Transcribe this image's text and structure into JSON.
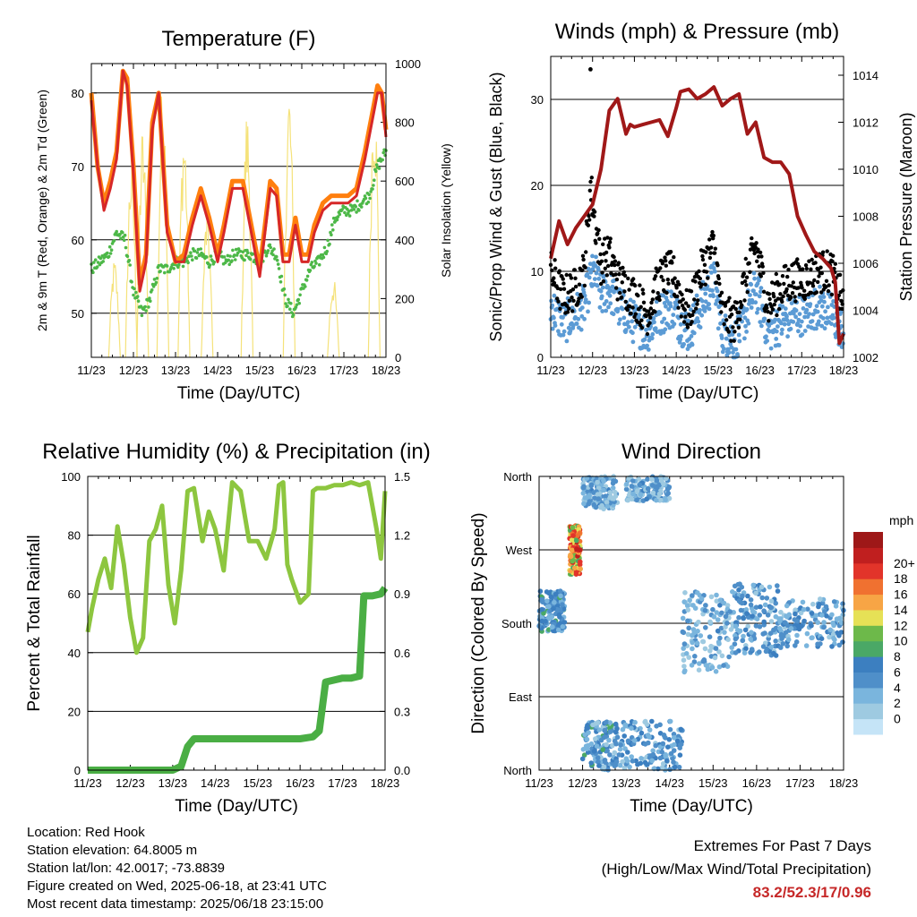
{
  "info": {
    "location": "Location: Red Hook",
    "elevation": "Station elevation: 64.8005 m",
    "latlon": "Station lat/lon: 42.0017; -73.8839",
    "created": "Figure created on Wed, 2025-06-18, at 23:41 UTC",
    "latest": "Most recent data timestamp: 2025/06/18 23:15:00"
  },
  "extremes": {
    "title": "Extremes For Past 7 Days",
    "subtitle": "(High/Low/Max Wind/Total Precipitation)",
    "values": "83.2/52.3/17/0.96"
  },
  "chart_data": [
    {
      "type": "line",
      "title": "Temperature (F)",
      "xlabel": "Time (Day/UTC)",
      "ylabel": "2m & 9m T (Red, Orange) & 2m Td (Green)",
      "y2label": "Solar Insolation (Yellow)",
      "x_ticks": [
        "11/23",
        "12/23",
        "13/23",
        "14/23",
        "15/23",
        "16/23",
        "17/23",
        "18/23"
      ],
      "xlim": [
        0,
        7
      ],
      "ylim": [
        44,
        84
      ],
      "y_ticks": [
        50,
        60,
        70,
        80
      ],
      "y2lim": [
        0,
        1000
      ],
      "y2_ticks": [
        0,
        200,
        400,
        600,
        800,
        1000
      ],
      "grid": "horizontal",
      "colors": {
        "t2m": "#d62728",
        "t9m": "#ff7f0e",
        "td": "#4db848",
        "solar": "#f5e27a"
      },
      "series": [
        {
          "key": "t9m",
          "x": [
            0,
            0.15,
            0.3,
            0.45,
            0.6,
            0.75,
            0.85,
            1.0,
            1.15,
            1.3,
            1.45,
            1.6,
            1.8,
            2.0,
            2.2,
            2.4,
            2.6,
            2.8,
            3.0,
            3.15,
            3.35,
            3.6,
            3.8,
            4.0,
            4.25,
            4.4,
            4.55,
            4.7,
            4.85,
            5.0,
            5.15,
            5.3,
            5.5,
            5.7,
            5.9,
            6.1,
            6.3,
            6.5,
            6.7,
            6.8,
            6.9,
            7.0
          ],
          "y": [
            80,
            70,
            65,
            68,
            72,
            83,
            82,
            70,
            54,
            58,
            76,
            80,
            62,
            57,
            58,
            63,
            67,
            63,
            58,
            62,
            68,
            68,
            62,
            56,
            68,
            67,
            58,
            58,
            63,
            58,
            58,
            62,
            65,
            66,
            66,
            66,
            67,
            72,
            78,
            81,
            80,
            75
          ]
        },
        {
          "key": "t2m",
          "x": [
            0,
            0.15,
            0.3,
            0.45,
            0.6,
            0.75,
            0.85,
            1.0,
            1.15,
            1.3,
            1.45,
            1.6,
            1.8,
            2.0,
            2.2,
            2.4,
            2.6,
            2.8,
            3.0,
            3.15,
            3.35,
            3.6,
            3.8,
            4.0,
            4.25,
            4.4,
            4.55,
            4.7,
            4.85,
            5.0,
            5.15,
            5.3,
            5.5,
            5.7,
            5.9,
            6.1,
            6.3,
            6.5,
            6.7,
            6.8,
            6.9,
            7.0
          ],
          "y": [
            79,
            70,
            64,
            67,
            71,
            83,
            81,
            69,
            53,
            57,
            75,
            80,
            61,
            57,
            57,
            62,
            66,
            62,
            57,
            61,
            67,
            67,
            61,
            55,
            67,
            66,
            57,
            57,
            62,
            57,
            57,
            61,
            64,
            65,
            65,
            65,
            66,
            71,
            77,
            80,
            80,
            74
          ]
        },
        {
          "key": "td",
          "x": [
            0,
            0.2,
            0.4,
            0.6,
            0.8,
            1.0,
            1.2,
            1.4,
            1.6,
            1.8,
            2.0,
            2.2,
            2.4,
            2.6,
            2.8,
            3.0,
            3.2,
            3.4,
            3.6,
            3.8,
            4.0,
            4.2,
            4.4,
            4.6,
            4.8,
            5.0,
            5.2,
            5.4,
            5.6,
            5.8,
            6.0,
            6.2,
            6.4,
            6.6,
            6.8,
            7.0
          ],
          "y": [
            56,
            57,
            58,
            61,
            60,
            53,
            50,
            52,
            56,
            56,
            57,
            57,
            58,
            58,
            57,
            58,
            57,
            58,
            58,
            58,
            57,
            59,
            58,
            52,
            50,
            53,
            56,
            57,
            59,
            63,
            64,
            64,
            65,
            66,
            70,
            72
          ]
        },
        {
          "key": "solar",
          "axis": "right",
          "peaks": [
            {
              "x": 0.55,
              "v": 340
            },
            {
              "x": 0.95,
              "v": 700
            },
            {
              "x": 1.22,
              "v": 800
            },
            {
              "x": 1.7,
              "v": 980
            },
            {
              "x": 2.2,
              "v": 820
            },
            {
              "x": 2.75,
              "v": 520
            },
            {
              "x": 3.7,
              "v": 860
            },
            {
              "x": 4.7,
              "v": 950
            },
            {
              "x": 5.75,
              "v": 280
            },
            {
              "x": 6.72,
              "v": 960
            }
          ]
        }
      ]
    },
    {
      "type": "scatter",
      "title": "Winds (mph) & Pressure (mb)",
      "xlabel": "Time (Day/UTC)",
      "ylabel": "Sonic/Prop Wind & Gust (Blue, Black)",
      "y2label": "Station Pressure (Maroon)",
      "x_ticks": [
        "11/23",
        "12/23",
        "13/23",
        "14/23",
        "15/23",
        "16/23",
        "17/23",
        "18/23"
      ],
      "xlim": [
        0,
        7
      ],
      "ylim": [
        0,
        35
      ],
      "y_ticks": [
        0,
        10,
        20,
        30
      ],
      "y2lim": [
        1002,
        1014.8
      ],
      "y2_ticks": [
        1002,
        1004,
        1006,
        1008,
        1010,
        1012,
        1014
      ],
      "grid": "horizontal",
      "colors": {
        "wind": "#5b9bd5",
        "gust": "#000000",
        "pressure": "#a01818"
      },
      "series": [
        {
          "key": "wind_env",
          "x": [
            0,
            0.3,
            0.6,
            0.8,
            0.95,
            1.05,
            1.2,
            1.4,
            1.6,
            1.8,
            2.0,
            2.3,
            2.6,
            2.9,
            3.1,
            3.3,
            3.6,
            3.9,
            4.1,
            4.4,
            4.6,
            4.9,
            5.2,
            5.5,
            5.8,
            6.1,
            6.4,
            6.7,
            7.0
          ],
          "y": [
            6,
            4,
            5,
            6,
            9,
            10,
            7,
            8,
            6,
            5,
            4,
            3,
            5,
            6,
            4,
            3,
            6,
            9,
            3,
            2,
            4,
            8,
            3,
            4,
            5,
            5,
            6,
            5,
            3
          ]
        },
        {
          "key": "gust_env",
          "x": [
            0,
            0.3,
            0.6,
            0.8,
            0.95,
            1.05,
            1.2,
            1.4,
            1.6,
            1.8,
            2.0,
            2.3,
            2.6,
            2.9,
            3.1,
            3.3,
            3.6,
            3.9,
            4.1,
            4.4,
            4.6,
            4.9,
            5.2,
            5.5,
            5.8,
            6.1,
            6.4,
            6.7,
            7.0
          ],
          "y": [
            10,
            7,
            8,
            10,
            20,
            16,
            11,
            12,
            9,
            8,
            7,
            5,
            9,
            10,
            7,
            5,
            10,
            13,
            5,
            4,
            8,
            13,
            6,
            8,
            9,
            9,
            10,
            10,
            6
          ]
        },
        {
          "key": "pressure",
          "x": [
            0,
            0.2,
            0.4,
            0.6,
            0.8,
            1.0,
            1.2,
            1.4,
            1.6,
            1.8,
            1.9,
            2.0,
            2.2,
            2.4,
            2.6,
            2.8,
            3.0,
            3.1,
            3.3,
            3.5,
            3.7,
            3.9,
            4.1,
            4.3,
            4.5,
            4.7,
            4.9,
            5.1,
            5.3,
            5.5,
            5.7,
            5.9,
            6.1,
            6.3,
            6.5,
            6.6,
            6.7,
            6.8,
            6.9,
            7.0
          ],
          "y": [
            1006.2,
            1007.8,
            1006.8,
            1007.5,
            1008.0,
            1008.5,
            1010.0,
            1012.5,
            1013.0,
            1011.5,
            1011.9,
            1011.8,
            1011.9,
            1012.0,
            1012.1,
            1011.4,
            1012.6,
            1013.3,
            1013.4,
            1013.0,
            1013.2,
            1013.5,
            1012.7,
            1013.0,
            1013.2,
            1011.5,
            1012.0,
            1010.5,
            1010.3,
            1010.3,
            1009.8,
            1008.0,
            1007.2,
            1006.5,
            1006.2,
            1006.0,
            1005.8,
            1005.2,
            1002.6,
            1003.0
          ]
        }
      ]
    },
    {
      "type": "line",
      "title": "Relative Humidity (%) & Precipitation (in)",
      "xlabel": "Time (Day/UTC)",
      "ylabel": "Percent & Total Rainfall",
      "x_ticks": [
        "11/23",
        "12/23",
        "13/23",
        "14/23",
        "15/23",
        "16/23",
        "17/23",
        "18/23"
      ],
      "xlim": [
        0,
        7
      ],
      "ylim": [
        0,
        100
      ],
      "y_ticks": [
        0,
        20,
        40,
        60,
        80,
        100
      ],
      "y2lim": [
        0,
        1.5
      ],
      "y2_ticks": [
        "0.0",
        "0.3",
        "0.6",
        "0.9",
        "1.2",
        "1.5"
      ],
      "grid": "horizontal",
      "colors": {
        "rh": "#8dc63f",
        "rain": "#4aae44"
      },
      "series": [
        {
          "key": "rh",
          "x": [
            0,
            0.1,
            0.25,
            0.4,
            0.55,
            0.7,
            0.85,
            1.0,
            1.15,
            1.3,
            1.45,
            1.6,
            1.75,
            1.9,
            2.05,
            2.2,
            2.35,
            2.5,
            2.7,
            2.85,
            3.0,
            3.2,
            3.4,
            3.6,
            3.8,
            4.0,
            4.2,
            4.4,
            4.5,
            4.6,
            4.7,
            4.8,
            5.0,
            5.2,
            5.3,
            5.4,
            5.6,
            5.8,
            6.0,
            6.2,
            6.4,
            6.6,
            6.7,
            6.8,
            6.9,
            7.0
          ],
          "y": [
            47,
            55,
            65,
            72,
            62,
            83,
            70,
            52,
            40,
            45,
            78,
            82,
            90,
            63,
            50,
            68,
            95,
            96,
            78,
            88,
            82,
            68,
            98,
            95,
            78,
            78,
            72,
            82,
            97,
            98,
            70,
            65,
            57,
            60,
            95,
            96,
            96,
            97,
            97,
            98,
            97,
            98,
            90,
            82,
            72,
            95
          ]
        },
        {
          "key": "rain",
          "axis": "right",
          "x": [
            0,
            1.0,
            2.0,
            2.2,
            2.35,
            2.5,
            3.0,
            4.0,
            5.0,
            5.3,
            5.45,
            5.6,
            6.0,
            6.2,
            6.4,
            6.5,
            6.7,
            6.9,
            7.0
          ],
          "y": [
            0,
            0,
            0,
            0.02,
            0.12,
            0.16,
            0.16,
            0.16,
            0.16,
            0.17,
            0.2,
            0.45,
            0.47,
            0.47,
            0.48,
            0.89,
            0.89,
            0.9,
            0.93
          ]
        }
      ]
    },
    {
      "type": "scatter",
      "title": "Wind Direction",
      "xlabel": "Time (Day/UTC)",
      "ylabel": "Direction (Colored By Speed)",
      "x_ticks": [
        "11/23",
        "12/23",
        "13/23",
        "14/23",
        "15/23",
        "16/23",
        "17/23",
        "18/23"
      ],
      "xlim": [
        0,
        7
      ],
      "ylim": [
        0,
        360
      ],
      "y_ticks": [
        "North",
        "East",
        "South",
        "West",
        "North"
      ],
      "grid": "horizontal",
      "colorbar": {
        "label": "mph",
        "ticks": [
          "0",
          "2",
          "4",
          "6",
          "8",
          "10",
          "12",
          "14",
          "16",
          "18",
          "20+"
        ],
        "colors": [
          "#c5e4f7",
          "#9ecae1",
          "#7ab5dd",
          "#4f8fc9",
          "#3c7fc0",
          "#4aa866",
          "#6db94a",
          "#e6e156",
          "#f7a545",
          "#f07130",
          "#e2342a",
          "#c01f1f",
          "#9e1818"
        ]
      },
      "series": [
        {
          "key": "direction",
          "clusters": [
            {
              "x": [
                0,
                0.6
              ],
              "y": [
                170,
                220
              ],
              "s": [
                3,
                8
              ]
            },
            {
              "x": [
                0.7,
                0.95
              ],
              "y": [
                240,
                300
              ],
              "s": [
                8,
                18
              ]
            },
            {
              "x": [
                1.0,
                1.8
              ],
              "y": [
                0,
                60
              ],
              "s": [
                2,
                8
              ]
            },
            {
              "x": [
                1.0,
                1.8
              ],
              "y": [
                320,
                360
              ],
              "s": [
                1,
                6
              ]
            },
            {
              "x": [
                1.8,
                3.3
              ],
              "y": [
                0,
                60
              ],
              "s": [
                2,
                7
              ]
            },
            {
              "x": [
                2.0,
                3.0
              ],
              "y": [
                330,
                360
              ],
              "s": [
                1,
                6
              ]
            },
            {
              "x": [
                3.3,
                4.5
              ],
              "y": [
                120,
                220
              ],
              "s": [
                1,
                6
              ]
            },
            {
              "x": [
                4.5,
                5.5
              ],
              "y": [
                140,
                230
              ],
              "s": [
                2,
                7
              ]
            },
            {
              "x": [
                5.5,
                7.0
              ],
              "y": [
                150,
                210
              ],
              "s": [
                2,
                7
              ]
            }
          ]
        }
      ]
    }
  ]
}
